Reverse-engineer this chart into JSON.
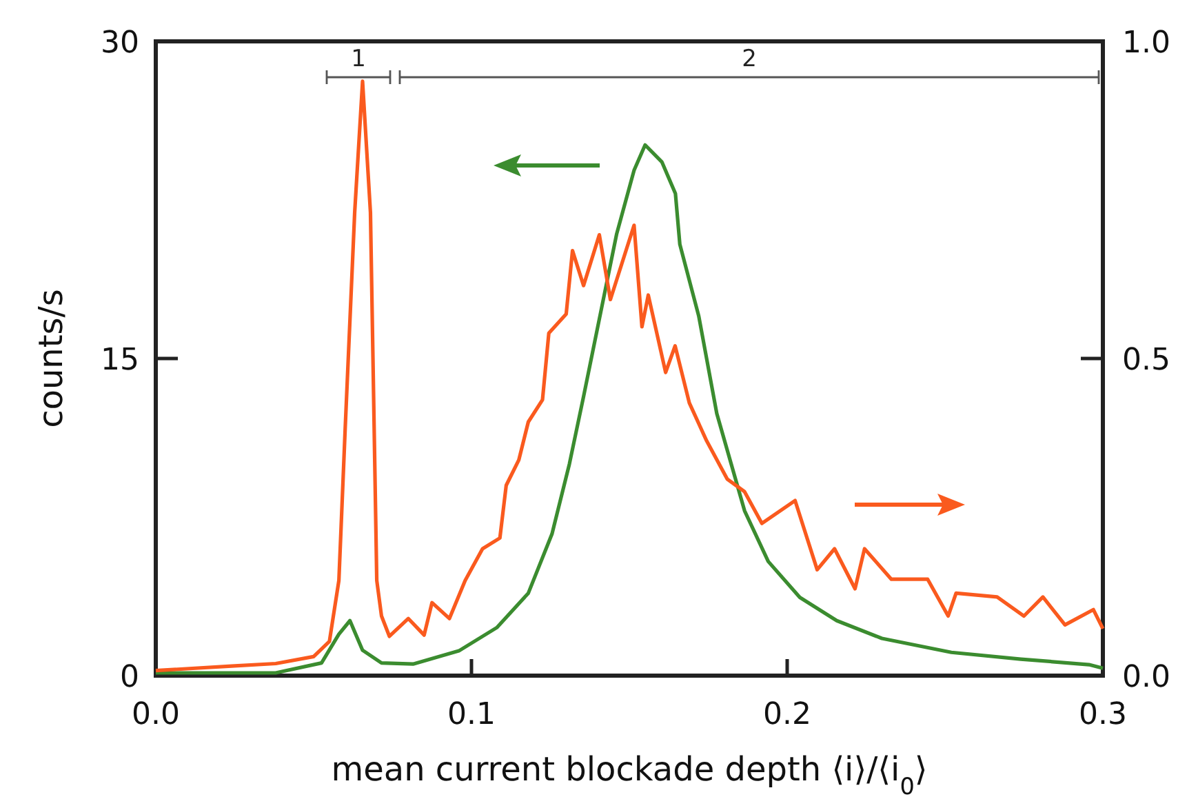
{
  "chart_data": {
    "type": "line",
    "xlabel": "mean current blockade depth ⟨i⟩/⟨i$_{0}$⟩",
    "ylabel": "counts/s",
    "xlim": [
      0,
      0.3
    ],
    "xticks": [
      {
        "value": 0,
        "label": "0.0"
      },
      0.1,
      0.2,
      0.3
    ],
    "ylim": [
      0,
      30
    ],
    "yticks": [
      0,
      15,
      30
    ],
    "y2lim": [
      0,
      1
    ],
    "y2ticks": [
      {
        "value": 0,
        "label": "0.0"
      },
      0.5,
      {
        "value": 1,
        "label": "1.0"
      }
    ],
    "grid": false,
    "marker": "none",
    "line_style": "solid",
    "annotations": [
      "1",
      "2"
    ],
    "series": [
      {
        "color": "#3b8c2f",
        "x": [
          0,
          0.038,
          0.0525,
          0.058,
          0.0615,
          0.0655,
          0.0715,
          0.0815,
          0.096,
          0.108,
          0.118,
          0.1255,
          0.131,
          0.1355,
          0.14,
          0.146,
          0.1515,
          0.155,
          0.1603,
          0.1646,
          0.166,
          0.172,
          0.1777,
          0.1865,
          0.194,
          0.204,
          0.2157,
          0.23,
          0.252,
          0.274,
          0.2956,
          0.3
        ],
        "values": [
          0.13,
          0.13,
          0.6,
          1.96,
          2.6,
          1.2,
          0.6,
          0.55,
          1.17,
          2.27,
          3.9,
          6.7,
          10,
          13.2,
          16.5,
          20.9,
          23.9,
          25.1,
          24.3,
          22.8,
          20.4,
          17,
          12.4,
          7.8,
          5.4,
          3.7,
          2.6,
          1.76,
          1.1,
          0.78,
          0.52,
          0.35
        ]
      },
      {
        "color": "#fa5a1e",
        "axis": "y2",
        "x": [
          0,
          0.024,
          0.038,
          0.05,
          0.055,
          0.058,
          0.06,
          0.063,
          0.0655,
          0.068,
          0.07,
          0.0715,
          0.074,
          0.08,
          0.085,
          0.0875,
          0.093,
          0.098,
          0.1035,
          0.109,
          0.111,
          0.115,
          0.118,
          0.1225,
          0.1245,
          0.13,
          0.132,
          0.1355,
          0.1405,
          0.144,
          0.1515,
          0.154,
          0.156,
          0.1615,
          0.1645,
          0.169,
          0.1745,
          0.181,
          0.1865,
          0.192,
          0.2025,
          0.2095,
          0.215,
          0.2215,
          0.2245,
          0.233,
          0.2445,
          0.251,
          0.2535,
          0.2665,
          0.275,
          0.281,
          0.288,
          0.297,
          0.3
        ],
        "values": [
          0.008,
          0.015,
          0.019,
          0.03,
          0.054,
          0.15,
          0.39,
          0.73,
          0.937,
          0.73,
          0.15,
          0.094,
          0.062,
          0.09,
          0.064,
          0.115,
          0.09,
          0.15,
          0.2,
          0.217,
          0.3,
          0.34,
          0.4,
          0.435,
          0.54,
          0.57,
          0.67,
          0.615,
          0.695,
          0.593,
          0.71,
          0.55,
          0.6,
          0.478,
          0.52,
          0.43,
          0.37,
          0.31,
          0.29,
          0.24,
          0.276,
          0.167,
          0.2,
          0.137,
          0.2,
          0.152,
          0.152,
          0.094,
          0.13,
          0.124,
          0.094,
          0.124,
          0.08,
          0.104,
          0.074
        ]
      }
    ]
  }
}
